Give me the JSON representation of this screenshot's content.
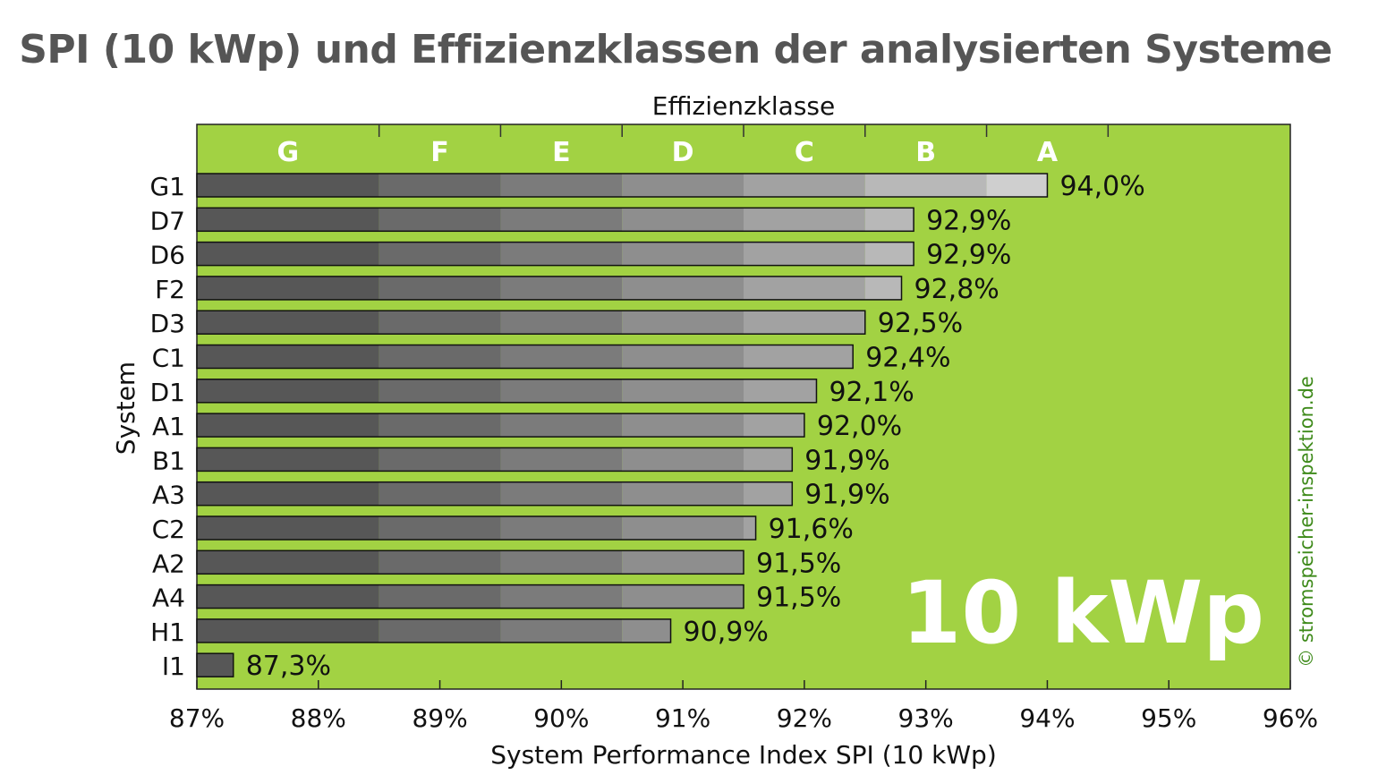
{
  "title": "SPI (10 kWp) und Effizienzklassen der analysierten Systeme",
  "badge": "10 kWp",
  "credit": "© stromspeicher-inspektion.de",
  "colors": {
    "plot_background": "#a2d243",
    "bar_shades": [
      "#575757",
      "#6a6a6a",
      "#7b7b7b",
      "#8e8e8e",
      "#a2a2a2",
      "#b8b8b8",
      "#cfcfcf"
    ],
    "bar_outline": "#111111"
  },
  "chart_data": {
    "type": "bar",
    "orientation": "horizontal",
    "categories": [
      "G1",
      "D7",
      "D6",
      "F2",
      "D3",
      "C1",
      "D1",
      "A1",
      "B1",
      "A3",
      "C2",
      "A2",
      "A4",
      "H1",
      "I1"
    ],
    "values": [
      94.0,
      92.9,
      92.9,
      92.8,
      92.5,
      92.4,
      92.1,
      92.0,
      91.9,
      91.9,
      91.6,
      91.5,
      91.5,
      90.9,
      87.3
    ],
    "value_labels": [
      "94,0%",
      "92,9%",
      "92,9%",
      "92,8%",
      "92,5%",
      "92,4%",
      "92,1%",
      "92,0%",
      "91,9%",
      "91,9%",
      "91,6%",
      "91,5%",
      "91,5%",
      "90,9%",
      "87,3%"
    ],
    "xlabel": "System Performance Index SPI (10 kWp)",
    "ylabel": "System",
    "xlim": [
      87,
      96
    ],
    "xticks": [
      87,
      88,
      89,
      90,
      91,
      92,
      93,
      94,
      95,
      96
    ],
    "xtick_labels": [
      "87%",
      "88%",
      "89%",
      "90%",
      "91%",
      "92%",
      "93%",
      "94%",
      "95%",
      "96%"
    ],
    "secondary_axis": {
      "label": "Effizienzklasse",
      "classes": [
        {
          "name": "G",
          "from": 87.0,
          "to": 88.5
        },
        {
          "name": "F",
          "from": 88.5,
          "to": 89.5
        },
        {
          "name": "E",
          "from": 89.5,
          "to": 90.5
        },
        {
          "name": "D",
          "from": 90.5,
          "to": 91.5
        },
        {
          "name": "C",
          "from": 91.5,
          "to": 92.5
        },
        {
          "name": "B",
          "from": 92.5,
          "to": 93.5
        },
        {
          "name": "A",
          "from": 93.5,
          "to": 94.5
        }
      ]
    },
    "grid": false
  }
}
